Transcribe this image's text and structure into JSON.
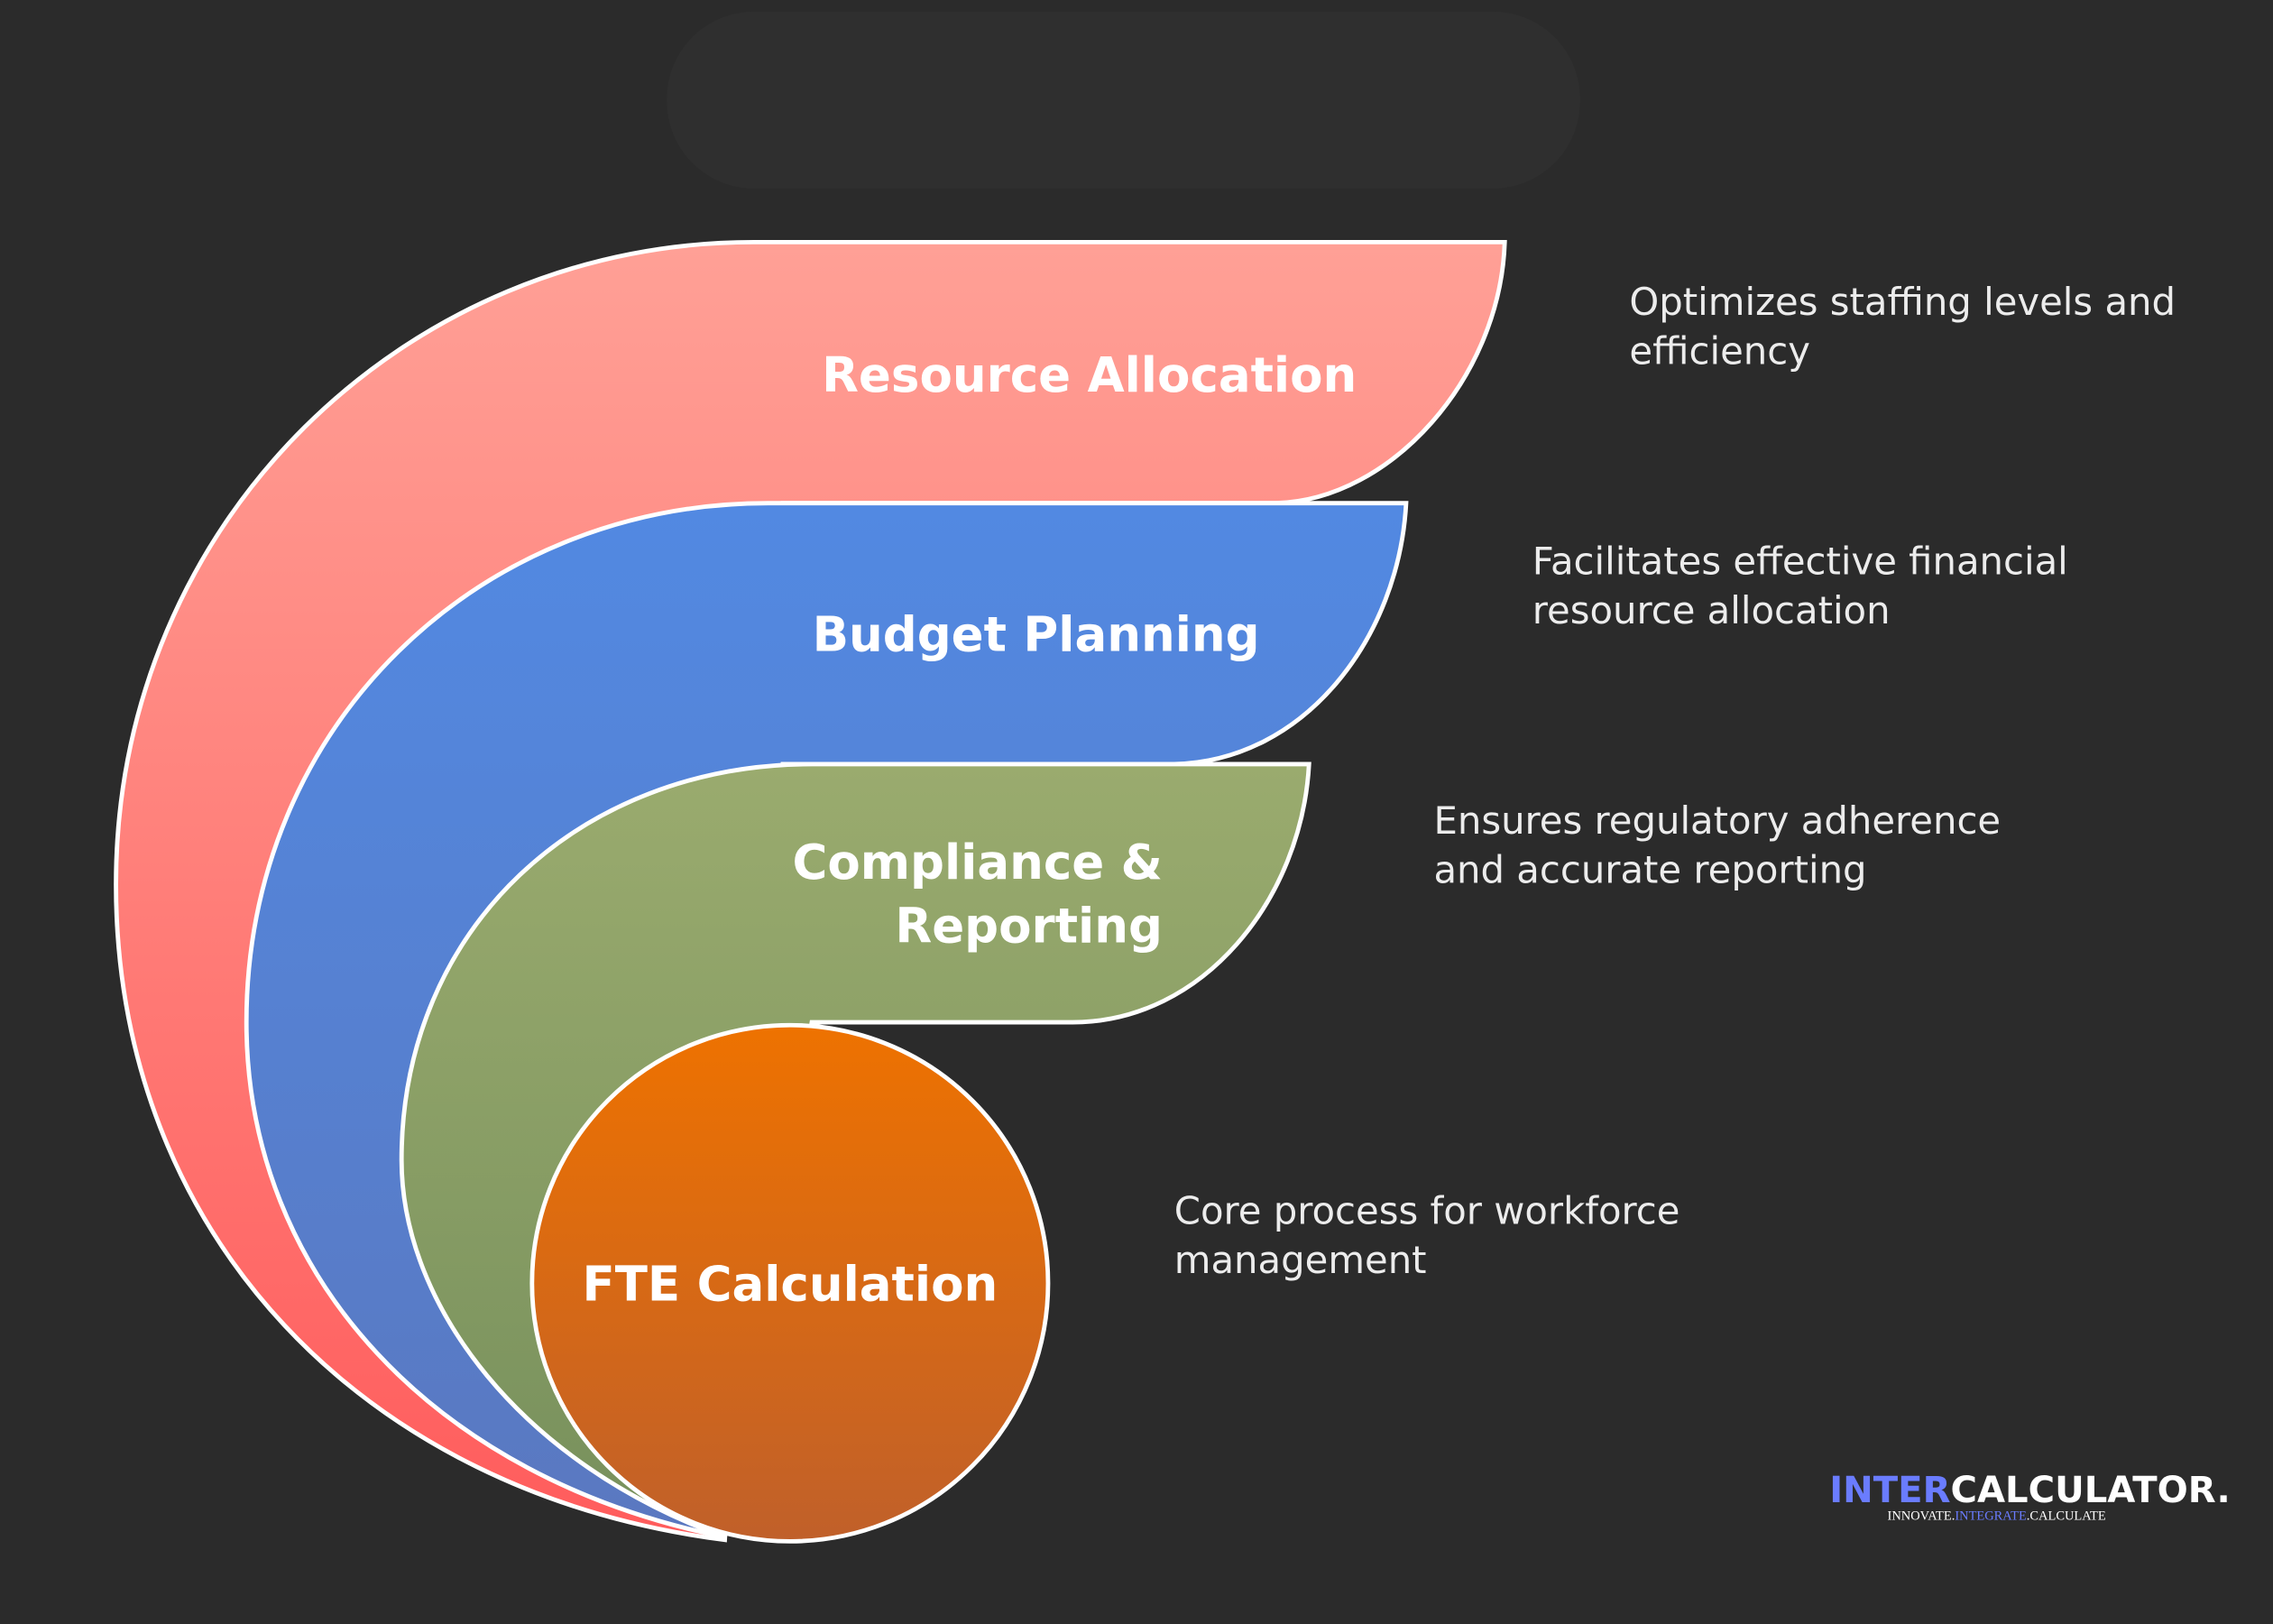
{
  "layers": [
    {
      "label_lines": [
        "Resource Allocation"
      ],
      "description_lines": [
        "Optimizes staffing levels and",
        "efficiency"
      ]
    },
    {
      "label_lines": [
        "Budget Planning"
      ],
      "description_lines": [
        "Facilitates effective financial",
        "resource allocation"
      ]
    },
    {
      "label_lines": [
        "Compliance &",
        "Reporting"
      ],
      "description_lines": [
        "Ensures regulatory adherence",
        "and accurate reporting"
      ]
    },
    {
      "label_lines": [
        "FTE Calculation"
      ],
      "description_lines": [
        "Core process for workforce",
        "management"
      ]
    }
  ],
  "logo": {
    "brand_first": "INTER",
    "brand_second": "CALCULATOR.",
    "tagline_parts": [
      "INNOVATE.",
      "INTEGRATE",
      ".CALCULATE"
    ]
  }
}
